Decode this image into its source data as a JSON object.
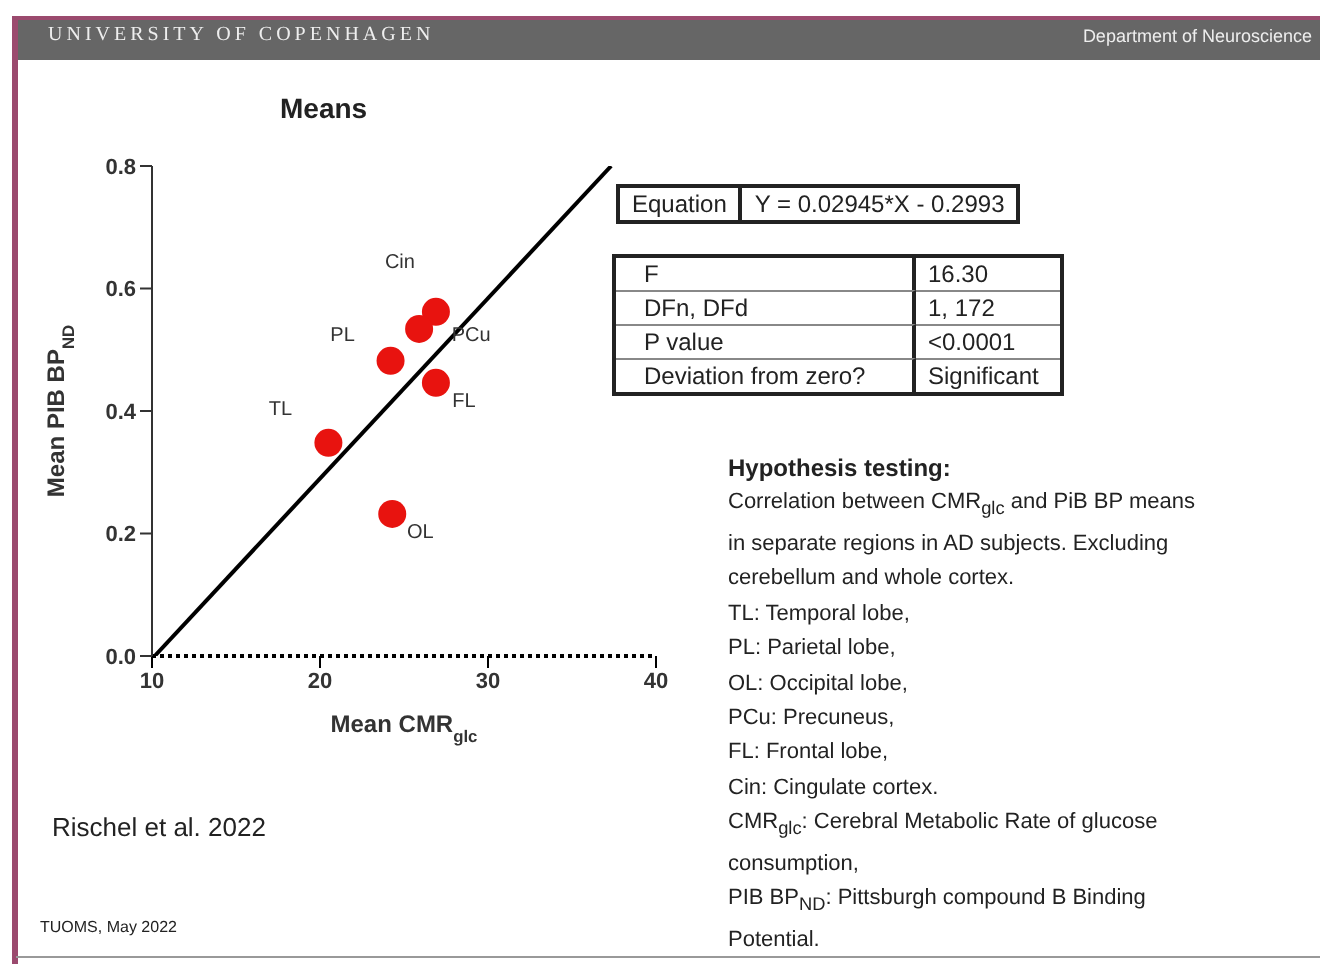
{
  "chart_data": {
    "type": "scatter",
    "title": "Means",
    "xlabel": "Mean CMR$_{glc}$",
    "ylabel": "Mean PIB BP$_{ND}$",
    "xlim": [
      10,
      40
    ],
    "xticks": [
      10,
      20,
      30,
      40
    ],
    "ylim": [
      0,
      0.8
    ],
    "yticks": [
      {
        "value": 0,
        "label": "0.0"
      },
      0.2,
      0.4,
      0.6,
      0.8
    ],
    "grid": false,
    "legend": false,
    "series": [
      {
        "type": "scatter",
        "color": "#e8130f",
        "marker": "circle",
        "x": [
          20.5,
          24.2,
          26.9,
          25.9,
          26.9,
          24.3
        ],
        "values": [
          0.348,
          0.482,
          0.562,
          0.534,
          0.446,
          0.232
        ]
      },
      {
        "type": "line",
        "color": "#000000",
        "marker": "none",
        "x": [
          10.16,
          37.33
        ],
        "values": [
          0,
          0.8
        ]
      }
    ],
    "annotations": [
      {
        "text": "TL",
        "x": 20.5,
        "y": 0.348
      },
      {
        "text": "PL",
        "x": 24.2,
        "y": 0.482
      },
      {
        "text": "Cin",
        "x": 26.9,
        "y": 0.562
      },
      {
        "text": "PCu",
        "x": 25.9,
        "y": 0.534
      },
      {
        "text": "FL",
        "x": 26.9,
        "y": 0.446
      },
      {
        "text": "OL",
        "x": 24.3,
        "y": 0.232
      },
      "Equation",
      "Y = 0.02945*X - 0.2993",
      "F",
      "16.30",
      "DFn, DFd",
      "1, 172",
      "P value",
      "<0.0001",
      "Deviation from zero?",
      "Significant",
      "Hypothesis testing:",
      "Correlation between CMR$_{glc}$ and PiB BP means",
      "in separate regions in AD  subjects. Excluding",
      "cerebellum and whole cortex.",
      "TL: Temporal lobe,",
      "PL: Parietal lobe,",
      "OL: Occipital lobe,",
      "PCu: Precuneus,",
      "FL: Frontal lobe,",
      "Cin: Cingulate cortex.",
      "CMR$_{glc}$: Cerebral Metabolic Rate of glucose",
      "consumption,",
      "PIB BP$_{ND}$: Pittsburgh compound B Binding",
      "Potential.",
      "Rischel et al. 2022",
      "TUOMS, May 2022",
      "UNIVERSITY OF COPENHAGEN",
      "Department  of Neuroscience"
    ]
  }
}
